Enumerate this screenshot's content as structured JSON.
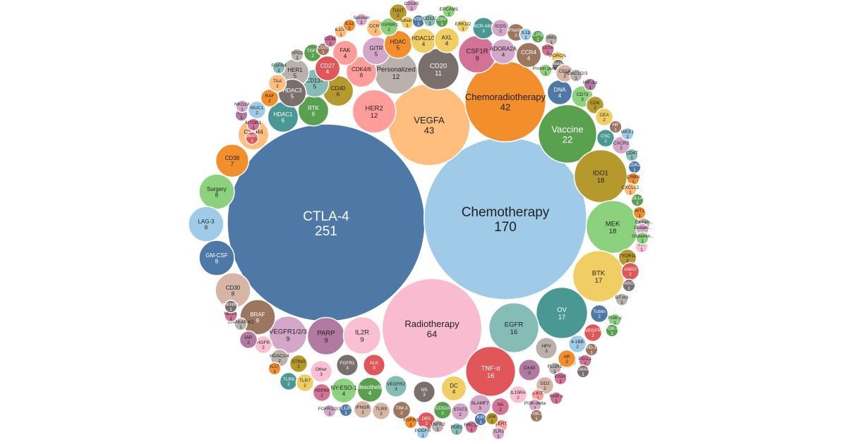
{
  "chart_data": {
    "type": "bubble",
    "title": "",
    "items": [
      {
        "name": "CTLA-4",
        "value": 251,
        "color": "#4E79A7"
      },
      {
        "name": "Chemotherapy",
        "value": 170,
        "color": "#A0CBE8"
      },
      {
        "name": "Radiotherapy",
        "value": 64,
        "color": "#F8BBD0"
      },
      {
        "name": "VEGFA",
        "value": 43,
        "color": "#FFBE7D"
      },
      {
        "name": "Chemoradiotherapy",
        "value": 42,
        "color": "#F28E2B"
      },
      {
        "name": "Vaccine",
        "value": 22,
        "color": "#59A14F"
      },
      {
        "name": "IDO1",
        "value": 18,
        "color": "#B6992D"
      },
      {
        "name": "MEK",
        "value": 18,
        "color": "#8CD17D"
      },
      {
        "name": "BTK",
        "value": 17,
        "color": "#F1CE63"
      },
      {
        "name": "OV",
        "value": 17,
        "color": "#499894"
      },
      {
        "name": "EGFR",
        "value": 16,
        "color": "#86BCB6"
      },
      {
        "name": "TNF-α",
        "value": 16,
        "color": "#E15759"
      },
      {
        "name": "Personalized",
        "value": 12,
        "color": "#BAB0AC"
      },
      {
        "name": "HER2",
        "value": 12,
        "color": "#FF9D9A"
      },
      {
        "name": "CD20",
        "value": 11,
        "color": "#79706E"
      },
      {
        "name": "CSF1R",
        "value": 9,
        "color": "#D37295"
      },
      {
        "name": "VEGFR1/2/3",
        "value": 9,
        "color": "#D4A6C8"
      },
      {
        "name": "PARP",
        "value": 9,
        "color": "#B07AA1"
      },
      {
        "name": "IL2R",
        "value": 9,
        "color": "#FABFD2"
      },
      {
        "name": "Surgery",
        "value": 8,
        "color": "#8CD17D"
      },
      {
        "name": "LAG-3",
        "value": 8,
        "color": "#A0CBE8"
      },
      {
        "name": "GM-CSF",
        "value": 8,
        "color": "#4E79A7"
      },
      {
        "name": "CD30",
        "value": 8,
        "color": "#D7B5A6"
      },
      {
        "name": "BRAF",
        "value": 8,
        "color": "#9D7660"
      },
      {
        "name": "CD38",
        "value": 7,
        "color": "#F28E2B"
      },
      {
        "name": "CXCR4",
        "value": 6,
        "color": "#FFBE7D"
      },
      {
        "name": "HDAC1",
        "value": 6,
        "color": "#499894"
      },
      {
        "name": "RTK",
        "value": 6,
        "color": "#59A14F"
      },
      {
        "name": "CD40",
        "value": 6,
        "color": "#B6992D"
      },
      {
        "name": "CD137",
        "value": 5,
        "color": "#86BCB6"
      },
      {
        "name": "HER1",
        "value": 5,
        "color": "#BAB0AC"
      },
      {
        "name": "HDAC3",
        "value": 5,
        "color": "#79706E"
      },
      {
        "name": "CDK4/6",
        "value": 6,
        "color": "#FF9D9A"
      },
      {
        "name": "GITR",
        "value": 5,
        "color": "#D4A6C8"
      },
      {
        "name": "FAK",
        "value": 4,
        "color": "#FF9D9A"
      },
      {
        "name": "CD27",
        "value": 4,
        "color": "#E15759"
      },
      {
        "name": "HDAC",
        "value": 5,
        "color": "#F28E2B"
      },
      {
        "name": "HDAC1/3",
        "value": 4,
        "color": "#F1CE63"
      },
      {
        "name": "AXL",
        "value": 4,
        "color": "#F1CE63"
      },
      {
        "name": "ADORA2A",
        "value": 4,
        "color": "#D4A6C8"
      },
      {
        "name": "CCR4",
        "value": 4,
        "color": "#9D7660"
      },
      {
        "name": "DNA",
        "value": 4,
        "color": "#4E79A7"
      },
      {
        "name": "CD73",
        "value": 3,
        "color": "#8CD17D"
      },
      {
        "name": "CDK",
        "value": 2,
        "color": "#B6992D"
      },
      {
        "name": "CEA",
        "value": 2,
        "color": "#F1CE63"
      },
      {
        "name": "CSC",
        "value": 2,
        "color": "#499894"
      },
      {
        "name": "CXCR2",
        "value": 2,
        "color": "#D4A6C8"
      },
      {
        "name": "CD47",
        "value": 1,
        "color": "#86BCB6"
      },
      {
        "name": "CDK2",
        "value": 1,
        "color": "#4E79A7"
      },
      {
        "name": "CRBN",
        "value": 1,
        "color": "#F28E2B"
      },
      {
        "name": "CXCL12",
        "value": 1,
        "color": "#FFBE7D"
      },
      {
        "name": "DLL4",
        "value": 1,
        "color": "#59A14F"
      },
      {
        "name": "Glutam..",
        "value": 1,
        "color": "#BAB0AC"
      },
      {
        "name": "HA",
        "value": 1,
        "color": "#FABFD2"
      },
      {
        "name": "TYOR11",
        "value": 2,
        "color": "#B6992D"
      },
      {
        "name": "ANG2",
        "value": 2,
        "color": "#E15759"
      },
      {
        "name": "ARG",
        "value": 1,
        "color": "#79706E"
      },
      {
        "name": "B7-H3",
        "value": 1,
        "color": "#BAB0AC"
      },
      {
        "name": "Tublin",
        "value": 2,
        "color": "#4E79A7"
      },
      {
        "name": "PI3K-γ",
        "value": 1,
        "color": "#8CD17D"
      },
      {
        "name": "PI3K-δ",
        "value": 1,
        "color": "#59A14F"
      },
      {
        "name": "VEGFR",
        "value": 2,
        "color": "#E15759"
      },
      {
        "name": "4-1BB",
        "value": 2,
        "color": "#A0CBE8"
      },
      {
        "name": "PD-1",
        "value": 1,
        "color": "#9D7660"
      },
      {
        "name": "PD-L1",
        "value": 1,
        "color": "#D37295"
      },
      {
        "name": "PSMA",
        "value": 1,
        "color": "#499894"
      },
      {
        "name": "SEMA4D",
        "value": 1,
        "color": "#79706E"
      },
      {
        "name": "AR",
        "value": 2,
        "color": "#F28E2B"
      },
      {
        "name": "FLOR1",
        "value": 1,
        "color": "#BAB0AC"
      },
      {
        "name": "P2GF",
        "value": 1,
        "color": "#D37295"
      },
      {
        "name": "HPV",
        "value": 3,
        "color": "#BAB0AC"
      },
      {
        "name": "GD2",
        "value": 2,
        "color": "#D7B5A6"
      },
      {
        "name": "c-KIT",
        "value": 1,
        "color": "#FF9D9A"
      },
      {
        "name": "RAR α",
        "value": 1,
        "color": "#D37295"
      },
      {
        "name": "PI3K-delta",
        "value": 1,
        "color": "#D4A6C8"
      },
      {
        "name": "PI3K-β",
        "value": 1,
        "color": "#9D7660"
      },
      {
        "name": "IL15RA",
        "value": 2,
        "color": "#FABFD2"
      },
      {
        "name": "OX40",
        "value": 3,
        "color": "#B07AA1"
      },
      {
        "name": "NA",
        "value": 2,
        "color": "#D37295"
      },
      {
        "name": "SLAMF7",
        "value": 3,
        "color": "#D4A6C8"
      },
      {
        "name": "STAT3",
        "value": 2,
        "color": "#D4A6C8"
      },
      {
        "name": "DC",
        "value": 4,
        "color": "#F1CE63"
      },
      {
        "name": "NS",
        "value": 3,
        "color": "#79706E"
      },
      {
        "name": "VEGFR2",
        "value": 3,
        "color": "#86BCB6"
      },
      {
        "name": "ALK",
        "value": 3,
        "color": "#E15759"
      },
      {
        "name": "FGFR1",
        "value": 3,
        "color": "#79706E"
      },
      {
        "name": "Other",
        "value": 3,
        "color": "#FABFD2"
      },
      {
        "name": "STING",
        "value": 2,
        "color": "#B6992D"
      },
      {
        "name": "HDAC1/4",
        "value": 2,
        "color": "#BAB0AC"
      },
      {
        "name": "HGFR",
        "value": 2,
        "color": "#FABFD2"
      },
      {
        "name": "IAP",
        "value": 2,
        "color": "#B07AA1"
      },
      {
        "name": "MAPKAP-K2",
        "value": 1,
        "color": "#BAB0AC"
      },
      {
        "name": "MMP1",
        "value": 1,
        "color": "#D37295"
      },
      {
        "name": "MKNK1",
        "value": 1,
        "color": "#79706E"
      },
      {
        "name": "TLR8",
        "value": 2,
        "color": "#499894"
      },
      {
        "name": "TLR7",
        "value": 2,
        "color": "#F1CE63"
      },
      {
        "name": "IL17",
        "value": 1,
        "color": "#F28E2B"
      },
      {
        "name": "HSP90",
        "value": 2,
        "color": "#D37295"
      },
      {
        "name": "NY-ESO-1",
        "value": 4,
        "color": "#8CD17D"
      },
      {
        "name": "Mesothelin",
        "value": 4,
        "color": "#59A14F"
      },
      {
        "name": "TIM-3",
        "value": 2,
        "color": "#9D7660"
      },
      {
        "name": "TLR9",
        "value": 2,
        "color": "#D7B5A6"
      },
      {
        "name": "IFNGR",
        "value": 2,
        "color": "#D7B5A6"
      },
      {
        "name": "IL12R",
        "value": 1,
        "color": "#4E79A7"
      },
      {
        "name": "FGFR1/2/3",
        "value": 1,
        "color": "#D4A6C8"
      },
      {
        "name": "CD32A",
        "value": 2,
        "color": "#59A14F"
      },
      {
        "name": "DR5",
        "value": 2,
        "color": "#E15759"
      },
      {
        "name": "FGFR3",
        "value": 1,
        "color": "#F28E2B"
      },
      {
        "name": "PDGFR",
        "value": 1,
        "color": "#A0CBE8"
      },
      {
        "name": "TNFR2",
        "value": 1,
        "color": "#BAB0AC"
      },
      {
        "name": "PDE5",
        "value": 1,
        "color": "#86BCB6"
      },
      {
        "name": "RRC15",
        "value": 1,
        "color": "#D37295"
      },
      {
        "name": "KIR",
        "value": 1,
        "color": "#4E79A7"
      },
      {
        "name": "TERT",
        "value": 1,
        "color": "#FF9D9A"
      },
      {
        "name": "JAK",
        "value": 1,
        "color": "#B6992D"
      },
      {
        "name": "TLR3",
        "value": 1,
        "color": "#D4A6C8"
      },
      {
        "name": "MTOR1",
        "value": 1,
        "color": "#D37295"
      },
      {
        "name": "MMP3",
        "value": 1,
        "color": "#E15759"
      },
      {
        "name": "NK",
        "value": 1,
        "color": "#B07AA1"
      },
      {
        "name": "NKG2A",
        "value": 1,
        "color": "#D4A6C8"
      },
      {
        "name": "MUC1",
        "value": 2,
        "color": "#A0CBE8"
      },
      {
        "name": "RAF",
        "value": 2,
        "color": "#F28E2B"
      },
      {
        "name": "TAA",
        "value": 2,
        "color": "#FFBE7D"
      },
      {
        "name": "FGFR4",
        "value": 1,
        "color": "#86BCB6"
      },
      {
        "name": "XPO1",
        "value": 1,
        "color": "#BAB0AC"
      },
      {
        "name": "TGFβ",
        "value": 2,
        "color": "#59A14F"
      },
      {
        "name": "CD25",
        "value": 1,
        "color": "#9D7660"
      },
      {
        "name": "CD3E",
        "value": 1,
        "color": "#D37295"
      },
      {
        "name": "IL10R",
        "value": 1,
        "color": "#FFBE7D"
      },
      {
        "name": "IL12",
        "value": 1,
        "color": "#F28E2B"
      },
      {
        "name": "Survivin",
        "value": 1,
        "color": "#D4A6C8"
      },
      {
        "name": "CCR5",
        "value": 2,
        "color": "#FFBE7D"
      },
      {
        "name": "TGFBR1",
        "value": 2,
        "color": "#8CD17D"
      },
      {
        "name": "TIGIT",
        "value": 2,
        "color": "#B6992D"
      },
      {
        "name": "tubulin",
        "value": 1,
        "color": "#F1CE63"
      },
      {
        "name": "CD16S",
        "value": 1,
        "color": "#D4A6C8"
      },
      {
        "name": "VDR",
        "value": 1,
        "color": "#4E79A7"
      },
      {
        "name": "CD122",
        "value": 1,
        "color": "#86BCB6"
      },
      {
        "name": "EBV",
        "value": 1,
        "color": "#59A14F"
      },
      {
        "name": "EPCAM1",
        "value": 1,
        "color": "#8CD17D"
      },
      {
        "name": "ERK1/2",
        "value": 1,
        "color": "#F1CE63"
      },
      {
        "name": "BCR-ABL",
        "value": 3,
        "color": "#499894"
      },
      {
        "name": "ICOS",
        "value": 2,
        "color": "#D4A6C8"
      },
      {
        "name": "IFNAR1",
        "value": 2,
        "color": "#9D7660"
      },
      {
        "name": "IL1β",
        "value": 1,
        "color": "#A0CBE8"
      },
      {
        "name": "IL2Rβ",
        "value": 1,
        "color": "#59A14F"
      },
      {
        "name": "SMO",
        "value": 1,
        "color": "#BAB0AC"
      },
      {
        "name": "SSTR",
        "value": 1,
        "color": "#D37295"
      },
      {
        "name": "PORCN",
        "value": 1,
        "color": "#F1CE63"
      },
      {
        "name": "Proteasome",
        "value": 1,
        "color": "#79706E"
      },
      {
        "name": "Proton pump",
        "value": 1,
        "color": "#8CD17D"
      },
      {
        "name": "CD19",
        "value": 2,
        "color": "#D7B5A6"
      },
      {
        "name": "HDAC1/2/3",
        "value": 1,
        "color": "#BAB0AC"
      },
      {
        "name": "HIF-1α",
        "value": 1,
        "color": "#B07AA1"
      },
      {
        "name": "HP",
        "value": 1,
        "color": "#9D7660"
      },
      {
        "name": "WEE1",
        "value": 1,
        "color": "#A0CBE8"
      },
      {
        "name": "WT1",
        "value": 1,
        "color": "#F28E2B"
      },
      {
        "name": "Glutam..",
        "value": 1,
        "color": "#D4A6C8"
      },
      {
        "name": "Glutamin..",
        "value": 1,
        "color": "#8CD17D"
      }
    ]
  }
}
